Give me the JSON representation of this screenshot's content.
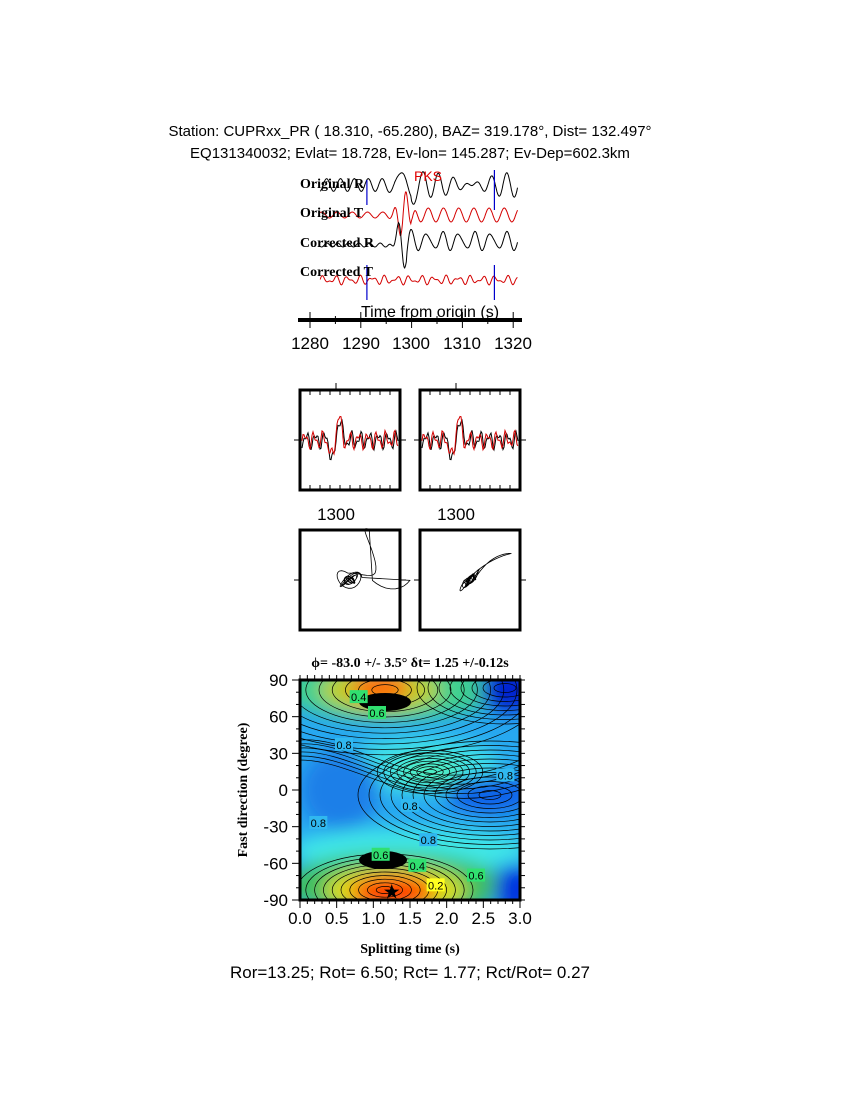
{
  "header": {
    "station_line": "Station: CUPRxx_PR (  18.310,  -65.280), BAZ=  319.178°, Dist=  132.497°",
    "event_line": "EQ131340032; Evlat=  18.728, Ev-lon= 145.287; Ev-Dep=602.3km"
  },
  "chart_data": [
    {
      "type": "line",
      "title": "",
      "xlabel": "Time from origin (s)",
      "xlim": [
        1278,
        1321
      ],
      "xticks": [
        "1280",
        "1290",
        "1300",
        "1310",
        "1320"
      ],
      "series": [
        {
          "name": "Original R",
          "color": "#000000"
        },
        {
          "name": "Original T",
          "color": "#d40000"
        },
        {
          "name": "Corrected R",
          "color": "#000000"
        },
        {
          "name": "Corrected T",
          "color": "#d40000"
        }
      ],
      "phase": {
        "label": "PKS",
        "time": 1300,
        "color": "#e00000"
      },
      "window_markers": [
        1291.2,
        1316.3
      ],
      "marker_color": "#0000cc"
    },
    {
      "type": "line",
      "panels": [
        "original",
        "corrected"
      ],
      "xtick_label": "1300"
    },
    {
      "type": "line",
      "panels": [
        "particle-motion-original",
        "particle-motion-corrected"
      ]
    },
    {
      "type": "heatmap",
      "title": "ϕ= -83.0 +/- 3.5° δt= 1.25 +/-0.12s",
      "xlabel": "Splitting time (s)",
      "ylabel": "Fast direction (degree)",
      "xlim": [
        0,
        3
      ],
      "ylim": [
        -90,
        90
      ],
      "xticks": [
        "0.0",
        "0.5",
        "1.0",
        "1.5",
        "2.0",
        "2.5",
        "3.0"
      ],
      "yticks": [
        "90",
        "60",
        "30",
        "0",
        "-30",
        "-60",
        "-90"
      ],
      "contour_labels": [
        {
          "text": "0.4",
          "x": 0.8,
          "y": 76
        },
        {
          "text": "0.6",
          "x": 1.05,
          "y": 63
        },
        {
          "text": "0.8",
          "x": 0.6,
          "y": 37
        },
        {
          "text": "0.8",
          "x": 2.8,
          "y": 12
        },
        {
          "text": "0.8",
          "x": 1.5,
          "y": -13
        },
        {
          "text": "0.8",
          "x": 0.25,
          "y": -27
        },
        {
          "text": "0.8",
          "x": 1.75,
          "y": -41
        },
        {
          "text": "0.6",
          "x": 1.1,
          "y": -53
        },
        {
          "text": "0.4",
          "x": 1.6,
          "y": -62
        },
        {
          "text": "0.2",
          "x": 1.85,
          "y": -78
        },
        {
          "text": "0.6",
          "x": 2.4,
          "y": -70
        }
      ],
      "best_fit": {
        "x": 1.25,
        "y": -83.0
      },
      "colorscale": [
        "#ff0000",
        "#ffff00",
        "#00c000",
        "#00ffff",
        "#0000ff"
      ]
    }
  ],
  "footer": {
    "ratios": "Ror=13.25; Rot= 6.50; Rct= 1.77; Rct/Rot= 0.27"
  }
}
